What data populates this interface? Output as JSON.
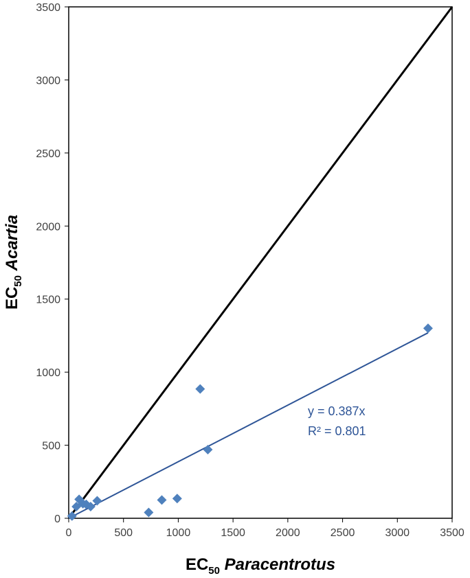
{
  "chart_data": {
    "type": "scatter",
    "xlabel": {
      "base": "EC",
      "sub": "50",
      "italic": "Paracentrotus"
    },
    "ylabel": {
      "base": "EC",
      "sub": "50",
      "italic": "Acartia"
    },
    "xlim": [
      0,
      3500
    ],
    "ylim": [
      0,
      3500
    ],
    "xticks": [
      0,
      500,
      1000,
      1500,
      2000,
      2500,
      3000,
      3500
    ],
    "yticks": [
      0,
      500,
      1000,
      1500,
      2000,
      2500,
      3000,
      3500
    ],
    "grid": false,
    "series": [
      {
        "points": [
          {
            "x": 30,
            "y": 15
          },
          {
            "x": 70,
            "y": 80
          },
          {
            "x": 95,
            "y": 130
          },
          {
            "x": 130,
            "y": 100
          },
          {
            "x": 160,
            "y": 95
          },
          {
            "x": 200,
            "y": 80
          },
          {
            "x": 260,
            "y": 120
          },
          {
            "x": 730,
            "y": 40
          },
          {
            "x": 850,
            "y": 125
          },
          {
            "x": 990,
            "y": 135
          },
          {
            "x": 1200,
            "y": 885
          },
          {
            "x": 1270,
            "y": 470
          },
          {
            "x": 3280,
            "y": 1300
          }
        ],
        "color": "#4F81BD"
      }
    ],
    "trendline": {
      "slope": 0.387,
      "x_range": [
        0,
        3280
      ],
      "color": "#2E5597"
    },
    "reference_line": {
      "from": [
        0,
        0
      ],
      "to": [
        3500,
        3500
      ],
      "color": "#000000"
    },
    "annotation": {
      "equation": "y = 0.387x",
      "r2": "R² = 0.801"
    }
  }
}
